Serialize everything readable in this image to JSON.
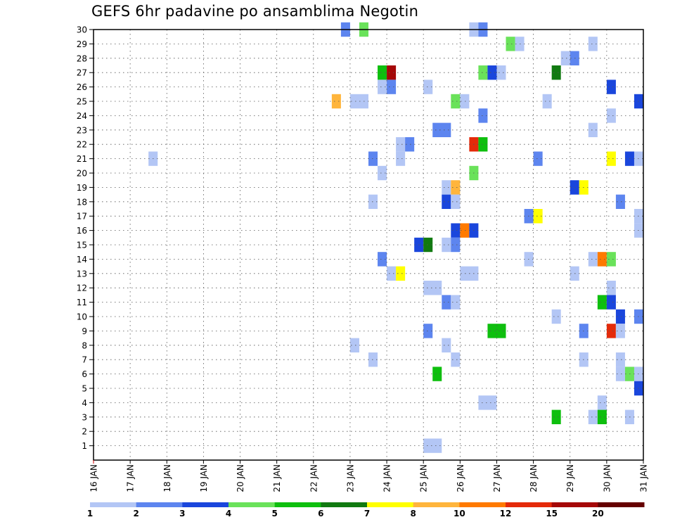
{
  "chart_data": {
    "type": "heatmap",
    "title": "GEFS 6hr padavine po ansamblima Negotin",
    "x_ticks": [
      "16 JAN",
      "17 JAN",
      "18 JAN",
      "19 JAN",
      "20 JAN",
      "21 JAN",
      "22 JAN",
      "23 JAN",
      "24 JAN",
      "25 JAN",
      "26 JAN",
      "27 JAN",
      "28 JAN",
      "29 JAN",
      "30 JAN",
      "31 JAN"
    ],
    "y_ticks": [
      "1",
      "2",
      "3",
      "4",
      "5",
      "6",
      "7",
      "8",
      "9",
      "10",
      "11",
      "12",
      "13",
      "14",
      "15",
      "16",
      "17",
      "18",
      "19",
      "20",
      "21",
      "22",
      "23",
      "24",
      "25",
      "26",
      "27",
      "28",
      "29",
      "30"
    ],
    "xlim": [
      16,
      31
    ],
    "ylim": [
      0,
      30
    ],
    "colorbar": {
      "labels": [
        "1",
        "2",
        "3",
        "4",
        "5",
        "6",
        "7",
        "8",
        "10",
        "12",
        "15",
        "20"
      ],
      "colors": [
        "#b3c6f5",
        "#5d85ef",
        "#1a46dc",
        "#6ae25a",
        "#0ebf0e",
        "#117a11",
        "#ffff00",
        "#ffb53c",
        "#ff7a00",
        "#e42a0a",
        "#a50808",
        "#650000"
      ]
    },
    "grid": true,
    "cells": [
      {
        "x": 22.75,
        "y": 30,
        "w": 0.25,
        "c": 1
      },
      {
        "x": 23.25,
        "y": 30,
        "w": 0.25,
        "c": 3
      },
      {
        "x": 26.25,
        "y": 30,
        "w": 0.25,
        "c": 0
      },
      {
        "x": 26.5,
        "y": 30,
        "w": 0.25,
        "c": 1
      },
      {
        "x": 27.25,
        "y": 29,
        "w": 0.25,
        "c": 3
      },
      {
        "x": 27.5,
        "y": 29,
        "w": 0.25,
        "c": 0
      },
      {
        "x": 29.5,
        "y": 29,
        "w": 0.25,
        "c": 0
      },
      {
        "x": 28.75,
        "y": 28,
        "w": 0.25,
        "c": 0
      },
      {
        "x": 29.0,
        "y": 28,
        "w": 0.25,
        "c": 1
      },
      {
        "x": 23.75,
        "y": 27,
        "w": 0.25,
        "c": 4
      },
      {
        "x": 24.0,
        "y": 27,
        "w": 0.25,
        "c": 10
      },
      {
        "x": 26.5,
        "y": 27,
        "w": 0.25,
        "c": 3
      },
      {
        "x": 26.75,
        "y": 27,
        "w": 0.25,
        "c": 2
      },
      {
        "x": 27.0,
        "y": 27,
        "w": 0.25,
        "c": 0
      },
      {
        "x": 28.5,
        "y": 27,
        "w": 0.25,
        "c": 5
      },
      {
        "x": 23.75,
        "y": 26,
        "w": 0.25,
        "c": 0
      },
      {
        "x": 24.0,
        "y": 26,
        "w": 0.25,
        "c": 1
      },
      {
        "x": 25.0,
        "y": 26,
        "w": 0.25,
        "c": 0
      },
      {
        "x": 30.0,
        "y": 26,
        "w": 0.25,
        "c": 2
      },
      {
        "x": 22.5,
        "y": 25,
        "w": 0.25,
        "c": 7
      },
      {
        "x": 23.0,
        "y": 25,
        "w": 0.5,
        "c": 0
      },
      {
        "x": 25.75,
        "y": 25,
        "w": 0.25,
        "c": 3
      },
      {
        "x": 26.0,
        "y": 25,
        "w": 0.25,
        "c": 0
      },
      {
        "x": 28.25,
        "y": 25,
        "w": 0.25,
        "c": 0
      },
      {
        "x": 30.75,
        "y": 25,
        "w": 0.25,
        "c": 2
      },
      {
        "x": 26.5,
        "y": 24,
        "w": 0.25,
        "c": 1
      },
      {
        "x": 30.0,
        "y": 24,
        "w": 0.25,
        "c": 0
      },
      {
        "x": 25.25,
        "y": 23,
        "w": 0.5,
        "c": 1
      },
      {
        "x": 29.5,
        "y": 23,
        "w": 0.25,
        "c": 0
      },
      {
        "x": 24.25,
        "y": 22,
        "w": 0.25,
        "c": 0
      },
      {
        "x": 24.5,
        "y": 22,
        "w": 0.25,
        "c": 1
      },
      {
        "x": 26.25,
        "y": 22,
        "w": 0.25,
        "c": 9
      },
      {
        "x": 26.5,
        "y": 22,
        "w": 0.25,
        "c": 4
      },
      {
        "x": 17.5,
        "y": 21,
        "w": 0.25,
        "c": 0
      },
      {
        "x": 23.5,
        "y": 21,
        "w": 0.25,
        "c": 1
      },
      {
        "x": 24.25,
        "y": 21,
        "w": 0.25,
        "c": 0
      },
      {
        "x": 28.0,
        "y": 21,
        "w": 0.25,
        "c": 1
      },
      {
        "x": 30.0,
        "y": 21,
        "w": 0.25,
        "c": 6
      },
      {
        "x": 30.5,
        "y": 21,
        "w": 0.25,
        "c": 2
      },
      {
        "x": 30.75,
        "y": 21,
        "w": 0.25,
        "c": 0
      },
      {
        "x": 23.75,
        "y": 20,
        "w": 0.25,
        "c": 0
      },
      {
        "x": 26.25,
        "y": 20,
        "w": 0.25,
        "c": 3
      },
      {
        "x": 25.5,
        "y": 19,
        "w": 0.25,
        "c": 0
      },
      {
        "x": 25.75,
        "y": 19,
        "w": 0.25,
        "c": 7
      },
      {
        "x": 29.0,
        "y": 19,
        "w": 0.25,
        "c": 2
      },
      {
        "x": 29.25,
        "y": 19,
        "w": 0.25,
        "c": 6
      },
      {
        "x": 23.5,
        "y": 18,
        "w": 0.25,
        "c": 0
      },
      {
        "x": 25.5,
        "y": 18,
        "w": 0.25,
        "c": 2
      },
      {
        "x": 25.75,
        "y": 18,
        "w": 0.25,
        "c": 0
      },
      {
        "x": 30.25,
        "y": 18,
        "w": 0.25,
        "c": 1
      },
      {
        "x": 27.75,
        "y": 17,
        "w": 0.25,
        "c": 1
      },
      {
        "x": 28.0,
        "y": 17,
        "w": 0.25,
        "c": 6
      },
      {
        "x": 30.75,
        "y": 17,
        "w": 0.25,
        "c": 0
      },
      {
        "x": 25.75,
        "y": 16,
        "w": 0.25,
        "c": 2
      },
      {
        "x": 26.0,
        "y": 16,
        "w": 0.25,
        "c": 8
      },
      {
        "x": 26.25,
        "y": 16,
        "w": 0.25,
        "c": 2
      },
      {
        "x": 30.75,
        "y": 16,
        "w": 0.25,
        "c": 0
      },
      {
        "x": 24.75,
        "y": 15,
        "w": 0.25,
        "c": 2
      },
      {
        "x": 25.0,
        "y": 15,
        "w": 0.25,
        "c": 5
      },
      {
        "x": 25.5,
        "y": 15,
        "w": 0.25,
        "c": 0
      },
      {
        "x": 25.75,
        "y": 15,
        "w": 0.25,
        "c": 1
      },
      {
        "x": 23.75,
        "y": 14,
        "w": 0.25,
        "c": 1
      },
      {
        "x": 27.75,
        "y": 14,
        "w": 0.25,
        "c": 0
      },
      {
        "x": 29.5,
        "y": 14,
        "w": 0.25,
        "c": 0
      },
      {
        "x": 29.75,
        "y": 14,
        "w": 0.25,
        "c": 8
      },
      {
        "x": 30.0,
        "y": 14,
        "w": 0.25,
        "c": 3
      },
      {
        "x": 24.0,
        "y": 13,
        "w": 0.25,
        "c": 0
      },
      {
        "x": 24.25,
        "y": 13,
        "w": 0.25,
        "c": 6
      },
      {
        "x": 26.0,
        "y": 13,
        "w": 0.5,
        "c": 0
      },
      {
        "x": 29.0,
        "y": 13,
        "w": 0.25,
        "c": 0
      },
      {
        "x": 25.0,
        "y": 12,
        "w": 0.5,
        "c": 0
      },
      {
        "x": 30.0,
        "y": 12,
        "w": 0.25,
        "c": 0
      },
      {
        "x": 25.5,
        "y": 11,
        "w": 0.25,
        "c": 1
      },
      {
        "x": 25.75,
        "y": 11,
        "w": 0.25,
        "c": 0
      },
      {
        "x": 29.75,
        "y": 11,
        "w": 0.25,
        "c": 4
      },
      {
        "x": 30.0,
        "y": 11,
        "w": 0.25,
        "c": 2
      },
      {
        "x": 28.5,
        "y": 10,
        "w": 0.25,
        "c": 0
      },
      {
        "x": 30.25,
        "y": 10,
        "w": 0.25,
        "c": 2
      },
      {
        "x": 30.75,
        "y": 10,
        "w": 0.25,
        "c": 1
      },
      {
        "x": 25.0,
        "y": 9,
        "w": 0.25,
        "c": 1
      },
      {
        "x": 26.75,
        "y": 9,
        "w": 0.5,
        "c": 4
      },
      {
        "x": 29.25,
        "y": 9,
        "w": 0.25,
        "c": 1
      },
      {
        "x": 30.0,
        "y": 9,
        "w": 0.25,
        "c": 9
      },
      {
        "x": 30.25,
        "y": 9,
        "w": 0.25,
        "c": 0
      },
      {
        "x": 23.0,
        "y": 8,
        "w": 0.25,
        "c": 0
      },
      {
        "x": 25.5,
        "y": 8,
        "w": 0.25,
        "c": 0
      },
      {
        "x": 23.5,
        "y": 7,
        "w": 0.25,
        "c": 0
      },
      {
        "x": 25.75,
        "y": 7,
        "w": 0.25,
        "c": 0
      },
      {
        "x": 29.25,
        "y": 7,
        "w": 0.25,
        "c": 0
      },
      {
        "x": 30.25,
        "y": 7,
        "w": 0.25,
        "c": 0
      },
      {
        "x": 25.25,
        "y": 6,
        "w": 0.25,
        "c": 4
      },
      {
        "x": 30.25,
        "y": 6,
        "w": 0.25,
        "c": 0
      },
      {
        "x": 30.5,
        "y": 6,
        "w": 0.25,
        "c": 3
      },
      {
        "x": 30.75,
        "y": 6,
        "w": 0.25,
        "c": 0
      },
      {
        "x": 30.75,
        "y": 5,
        "w": 0.25,
        "c": 2
      },
      {
        "x": 26.5,
        "y": 4,
        "w": 0.5,
        "c": 0
      },
      {
        "x": 29.75,
        "y": 4,
        "w": 0.25,
        "c": 0
      },
      {
        "x": 28.5,
        "y": 3,
        "w": 0.25,
        "c": 4
      },
      {
        "x": 29.5,
        "y": 3,
        "w": 0.25,
        "c": 0
      },
      {
        "x": 29.75,
        "y": 3,
        "w": 0.25,
        "c": 4
      },
      {
        "x": 30.5,
        "y": 3,
        "w": 0.25,
        "c": 0
      },
      {
        "x": 25.0,
        "y": 1,
        "w": 0.5,
        "c": 0
      }
    ]
  }
}
